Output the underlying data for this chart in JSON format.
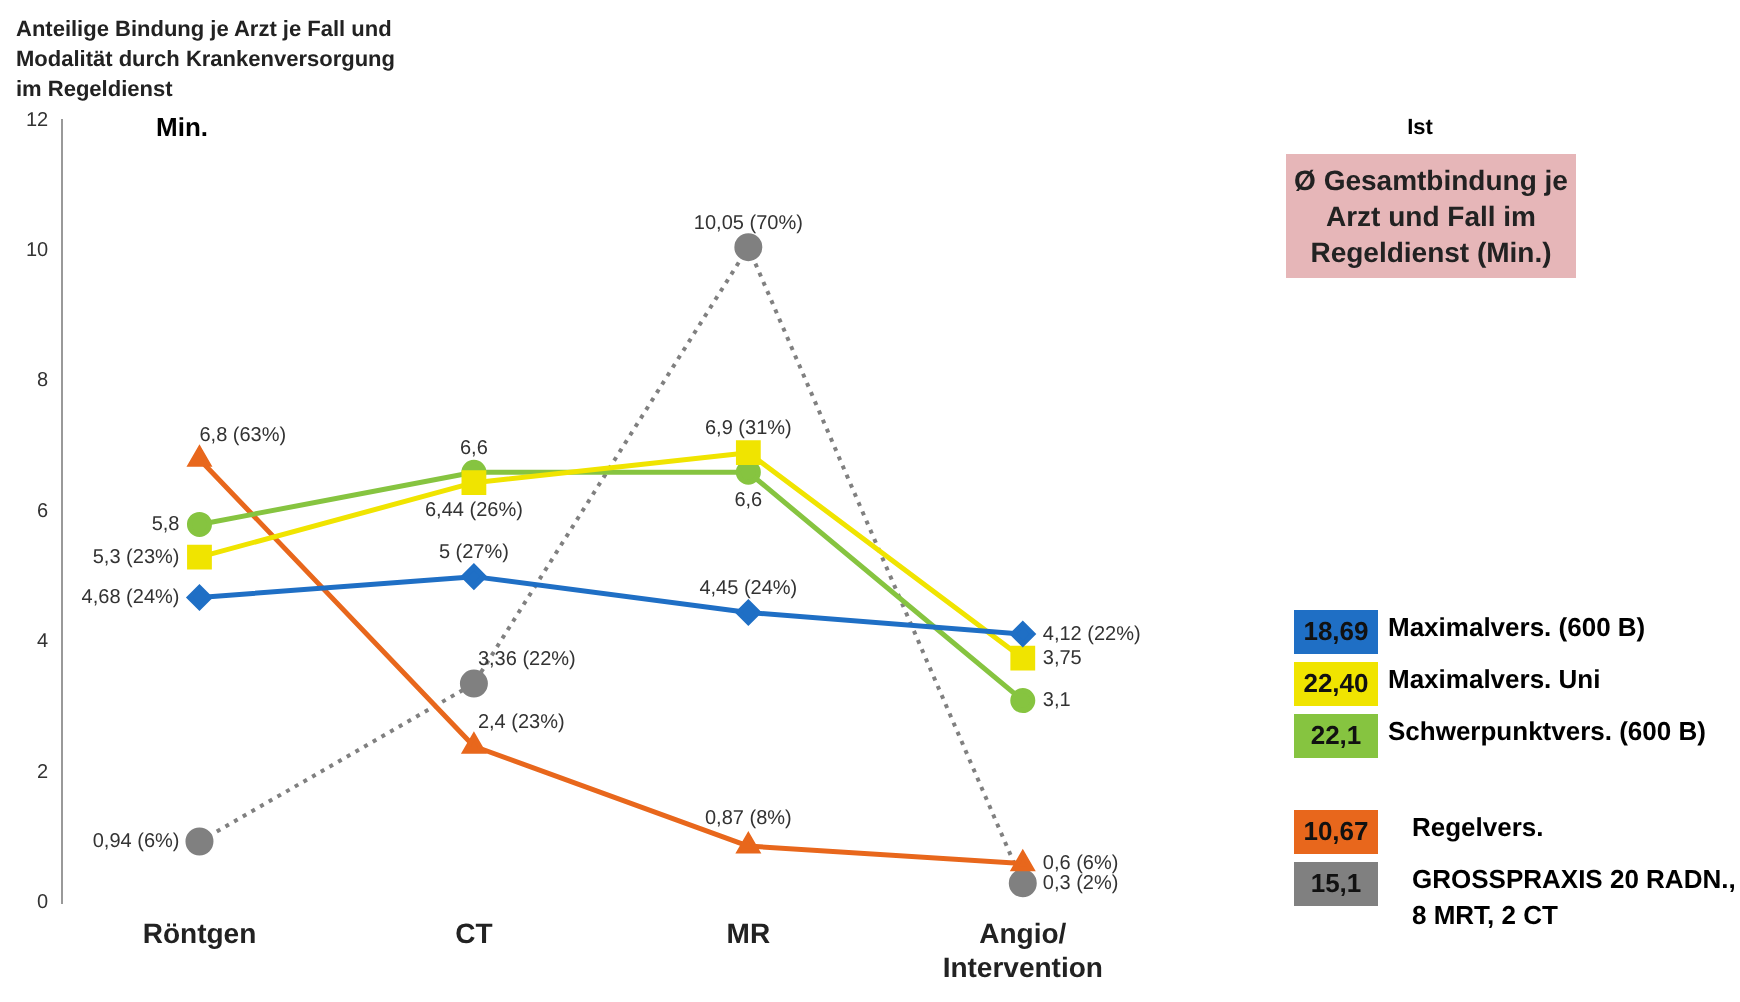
{
  "chart_data": {
    "type": "line",
    "title": "Anteilige Bindung je Arzt je Fall und Modalität durch Krankenversorgung im Regeldienst",
    "ylabel": "Min.",
    "categories": [
      "Röntgen",
      "CT",
      "MR",
      "Angio/Intervention"
    ],
    "series": [
      {
        "name": "Maximalvers. (600 B)",
        "color": "#1f6fc5",
        "marker": "diamond",
        "line_style": "solid",
        "values": [
          4.68,
          5,
          4.45,
          4.12
        ],
        "value_labels": [
          "4,68 (24%)",
          "5 (27%)",
          "4,45 (24%)",
          "4,12 (22%)"
        ]
      },
      {
        "name": "Maximalvers. Uni",
        "color": "#f0e400",
        "marker": "square",
        "line_style": "solid",
        "values": [
          5.3,
          6.44,
          6.9,
          3.75
        ],
        "value_labels": [
          "5,3 (23%)",
          "6,44 (26%)",
          "6,9 (31%)",
          "3,75"
        ]
      },
      {
        "name": "Schwerpunktvers. (600 B)",
        "color": "#86c440",
        "marker": "circle",
        "line_style": "solid",
        "values": [
          5.8,
          6.6,
          6.6,
          3.1
        ],
        "value_labels": [
          "5,8",
          "6,6",
          "6,6",
          "3,1"
        ]
      },
      {
        "name": "Regelvers.",
        "color": "#e8671c",
        "marker": "triangle",
        "line_style": "solid",
        "values": [
          6.8,
          2.4,
          0.87,
          0.6
        ],
        "value_labels": [
          "6,8 (63%)",
          "2,4 (23%)",
          "0,87 (8%)",
          "0,6 (6%)"
        ]
      },
      {
        "name": "GROSSPRAXIS 20 RADN., 8 MRT, 2 CT",
        "color": "#808080",
        "marker": "circle",
        "line_style": "dotted",
        "values": [
          0.94,
          3.36,
          10.05,
          0.3
        ],
        "value_labels": [
          "0,94 (6%)",
          "3,36 (22%)",
          "10,05 (70%)",
          "0,3 (2%)"
        ]
      }
    ],
    "ylim": [
      0,
      12
    ],
    "yticks": [
      0,
      2,
      4,
      6,
      8,
      10,
      12
    ],
    "grid": false,
    "legend": "right",
    "annotations": [
      "Ist",
      "Ø Gesamtbindung je Arzt und Fall im Regeldienst (Min.)",
      "18,69",
      "22,40",
      "22,1",
      "10,67",
      "15,1"
    ]
  }
}
